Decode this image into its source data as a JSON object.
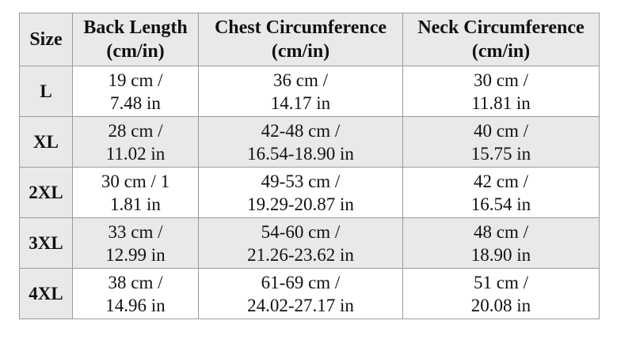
{
  "table": {
    "headers": [
      {
        "line1": "Size",
        "line2": ""
      },
      {
        "line1": "Back Length",
        "line2": "(cm/in)"
      },
      {
        "line1": "Chest Circumference",
        "line2": "(cm/in)"
      },
      {
        "line1": "Neck Circumference",
        "line2": "(cm/in)"
      }
    ],
    "rows": [
      {
        "size": "L",
        "back": [
          "19 cm /",
          "7.48 in"
        ],
        "chest": [
          "36 cm /",
          "14.17 in"
        ],
        "neck": [
          "30 cm /",
          "11.81 in"
        ]
      },
      {
        "size": "XL",
        "back": [
          "28 cm /",
          "11.02 in"
        ],
        "chest": [
          "42-48 cm /",
          "16.54-18.90 in"
        ],
        "neck": [
          "40 cm /",
          "15.75 in"
        ]
      },
      {
        "size": "2XL",
        "back": [
          "30 cm / 1",
          "1.81 in"
        ],
        "chest": [
          "49-53 cm /",
          "19.29-20.87 in"
        ],
        "neck": [
          "42 cm /",
          "16.54 in"
        ]
      },
      {
        "size": "3XL",
        "back": [
          "33 cm /",
          "12.99 in"
        ],
        "chest": [
          "54-60 cm /",
          "21.26-23.62 in"
        ],
        "neck": [
          "48 cm /",
          "18.90 in"
        ]
      },
      {
        "size": "4XL",
        "back": [
          "38 cm /",
          "14.96 in"
        ],
        "chest": [
          "61-69 cm /",
          "24.02-27.17 in"
        ],
        "neck": [
          "51 cm /",
          "20.08 in"
        ]
      }
    ]
  },
  "colors": {
    "shaded_bg": "#e9e9e9",
    "plain_bg": "#ffffff",
    "border": "#9a9a9a",
    "text": "#111111"
  }
}
